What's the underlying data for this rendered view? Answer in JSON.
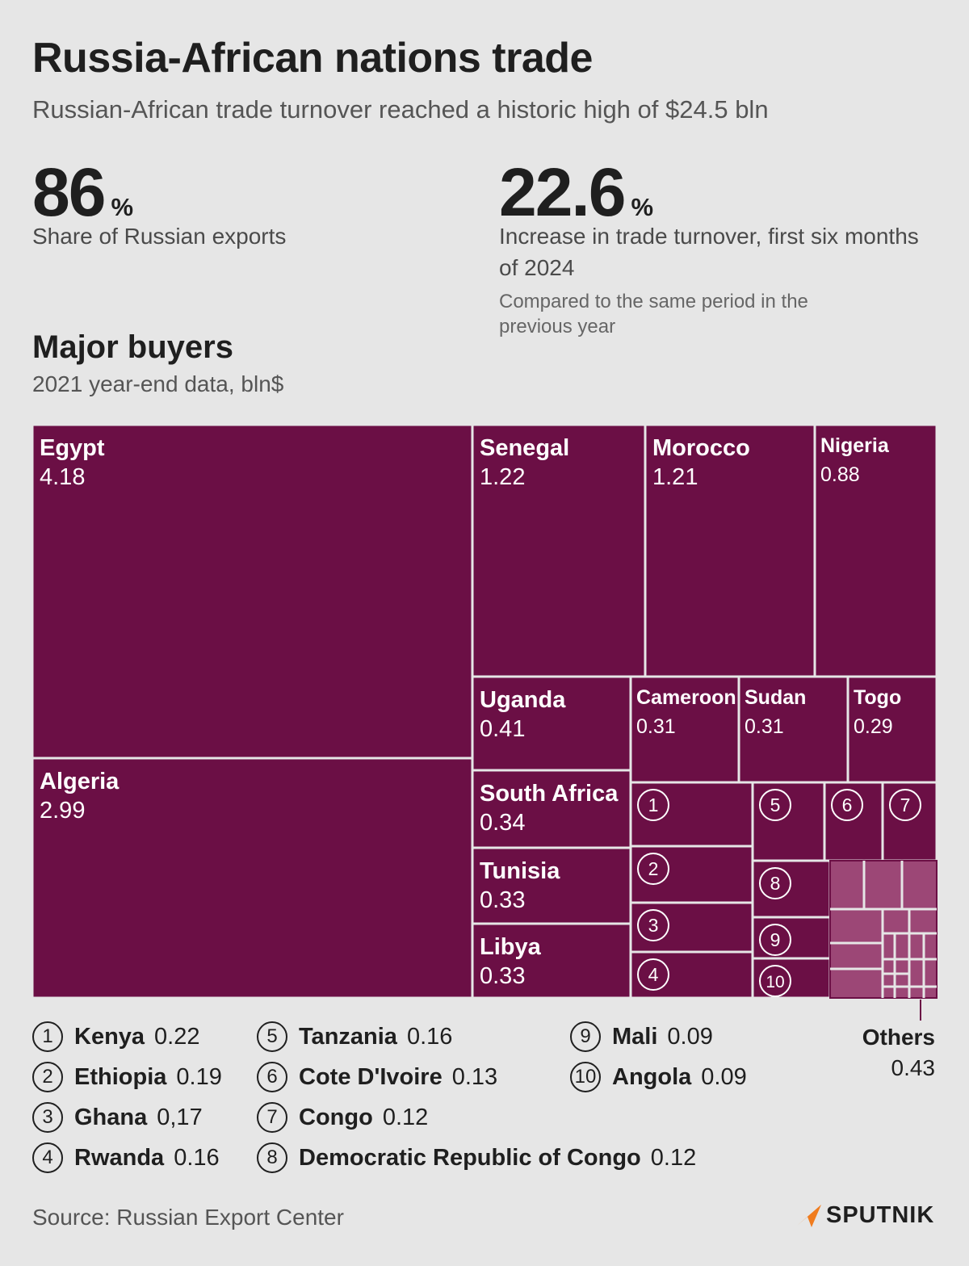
{
  "header": {
    "title": "Russia-African nations trade",
    "subtitle": "Russian-African trade turnover reached a historic high of $24.5 bln"
  },
  "stats": [
    {
      "value": "86",
      "unit": "%",
      "label": "Share of Russian exports"
    },
    {
      "value": "22.6",
      "unit": "%",
      "label": "Increase in trade turnover, first six months of 2024",
      "note": "Compared to the same period in the previous year"
    }
  ],
  "section": {
    "title": "Major buyers",
    "subtitle": "2021 year-end data, bln$"
  },
  "chart_data": {
    "type": "treemap",
    "unit": "bln$",
    "colors": {
      "main": "#6b0f45",
      "others": "#9c4776",
      "border": "#e6e6e6"
    },
    "items": [
      {
        "name": "Egypt",
        "value": 4.18,
        "value_label": "4.18"
      },
      {
        "name": "Algeria",
        "value": 2.99,
        "value_label": "2.99"
      },
      {
        "name": "Senegal",
        "value": 1.22,
        "value_label": "1.22"
      },
      {
        "name": "Morocco",
        "value": 1.21,
        "value_label": "1.21"
      },
      {
        "name": "Nigeria",
        "value": 0.88,
        "value_label": "0.88"
      },
      {
        "name": "Uganda",
        "value": 0.41,
        "value_label": "0.41"
      },
      {
        "name": "South Africa",
        "value": 0.34,
        "value_label": "0.34"
      },
      {
        "name": "Tunisia",
        "value": 0.33,
        "value_label": "0.33"
      },
      {
        "name": "Libya",
        "value": 0.33,
        "value_label": "0.33"
      },
      {
        "name": "Cameroon",
        "value": 0.31,
        "value_label": "0.31"
      },
      {
        "name": "Sudan",
        "value": 0.31,
        "value_label": "0.31"
      },
      {
        "name": "Togo",
        "value": 0.29,
        "value_label": "0.29"
      },
      {
        "num": "1",
        "name": "Kenya",
        "value": 0.22,
        "value_label": "0.22"
      },
      {
        "num": "2",
        "name": "Ethiopia",
        "value": 0.19,
        "value_label": "0.19"
      },
      {
        "num": "3",
        "name": "Ghana",
        "value": 0.17,
        "value_label": "0,17"
      },
      {
        "num": "4",
        "name": "Rwanda",
        "value": 0.16,
        "value_label": "0.16"
      },
      {
        "num": "5",
        "name": "Tanzania",
        "value": 0.16,
        "value_label": "0.16"
      },
      {
        "num": "6",
        "name": "Cote D'Ivoire",
        "value": 0.13,
        "value_label": "0.13"
      },
      {
        "num": "7",
        "name": "Congo",
        "value": 0.12,
        "value_label": "0.12"
      },
      {
        "num": "8",
        "name": "Democratic Republic of Congo",
        "value": 0.12,
        "value_label": "0.12"
      },
      {
        "num": "9",
        "name": "Mali",
        "value": 0.09,
        "value_label": "0.09"
      },
      {
        "num": "10",
        "name": "Angola",
        "value": 0.09,
        "value_label": "0.09"
      },
      {
        "name": "Others",
        "value": 0.43,
        "value_label": "0.43"
      }
    ]
  },
  "source": "Source: Russian Export Center",
  "brand": {
    "name": "SPUTNIK",
    "color": "#f07c1e"
  }
}
